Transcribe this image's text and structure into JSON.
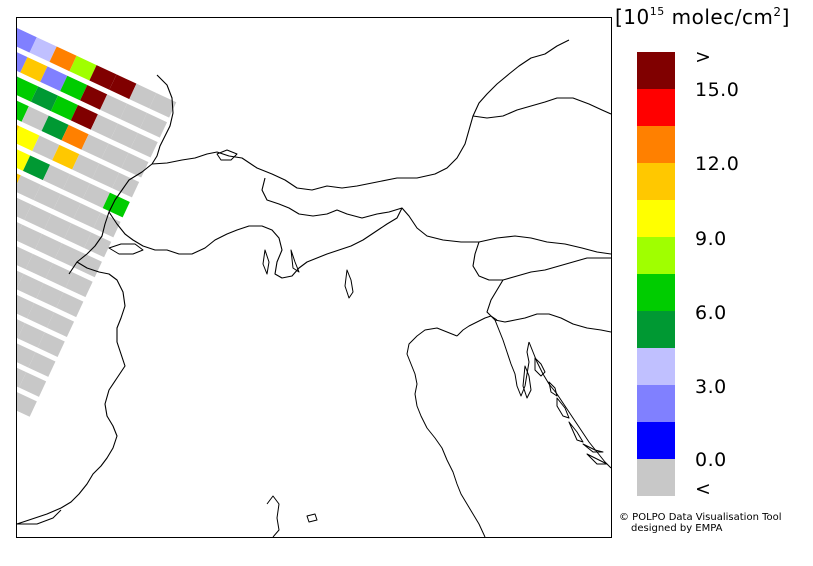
{
  "legend": {
    "title_prefix": "[10",
    "title_exp": "15",
    "title_unit": " molec/cm",
    "title_sq": "2",
    "title_suffix": "]",
    "labels": [
      ">",
      "15.0",
      "12.0",
      "9.0",
      "6.0",
      "3.0",
      "0.0",
      "<"
    ],
    "colors": [
      "#800000",
      "#ff0000",
      "#ff8000",
      "#ffc800",
      "#ffff00",
      "#a0ff00",
      "#00cc00",
      "#009933",
      "#c0c0ff",
      "#8080ff",
      "#0000ff",
      "#c8c8c8"
    ]
  },
  "credit": {
    "line1": "© POLPO Data Visualisation Tool",
    "line2": "designed by EMPA"
  },
  "swath_rows": [
    [
      "#8080ff",
      "#c0c0ff",
      "#c0c0ff",
      "#8080ff",
      "#c0c0ff",
      "#ff8000",
      "#a0ff00",
      "#800000",
      "#800000",
      "#c8c8c8",
      "#c8c8c8"
    ],
    [
      "#8080ff",
      "#8080ff",
      "#0000ff",
      "#8080ff",
      "#ffc800",
      "#8080ff",
      "#00cc00",
      "#800000",
      "#c8c8c8",
      "#c8c8c8",
      "#c8c8c8"
    ],
    [
      "#0000ff",
      "#0000ff",
      "#0000ff",
      "#009933",
      "#00cc00",
      "#009933",
      "#00cc00",
      "#800000",
      "#c8c8c8",
      "#c8c8c8",
      "#c8c8c8"
    ],
    [
      "#0000ff",
      "#8080ff",
      "#0000ff",
      "#0000ff",
      "#00cc00",
      "#c8c8c8",
      "#009933",
      "#ff8000",
      "#c8c8c8",
      "#c8c8c8",
      "#c8c8c8"
    ],
    [
      "#c8c8c8",
      "#0000ff",
      "#8080ff",
      "#a0ff00",
      "#ffc800",
      "#ffff00",
      "#c8c8c8",
      "#ffc800",
      "#c8c8c8",
      "#c8c8c8",
      "#c8c8c8"
    ],
    [
      "#8080ff",
      "#8080ff",
      "#00cc00",
      "#ffc800",
      "#a0ff00",
      "#ffff00",
      "#009933",
      "#c8c8c8",
      "#c8c8c8",
      "#c8c8c8",
      "#00cc00"
    ],
    [
      "#c0c0ff",
      "#8080ff",
      "#a0ff00",
      "#800000",
      "#ffc800",
      "#ffc800",
      "#c8c8c8",
      "#c8c8c8",
      "#c8c8c8",
      "#c8c8c8",
      "#c8c8c8"
    ],
    [
      "#c8c8c8",
      "#c8c8c8",
      "#ffc800",
      "#ff8000",
      "#a0ff00",
      "#ffc800",
      "#c8c8c8",
      "#c8c8c8",
      "#c8c8c8",
      "#c8c8c8",
      "#c8c8c8"
    ],
    [
      "#00cc00",
      "#ffc800",
      "#800000",
      "#00cc00",
      "#ff8000",
      "#00cc00",
      "#c8c8c8",
      "#c8c8c8",
      "#c8c8c8",
      "#c8c8c8",
      "#c8c8c8"
    ],
    [
      "#a0ff00",
      "#ffff00",
      "#009933",
      "#ff0000",
      "#c0c0ff",
      "#ffc800",
      "#009933",
      "#c8c8c8",
      "#c8c8c8",
      "#c8c8c8",
      "#c8c8c8"
    ],
    [
      "#ffff00",
      "#00cc00",
      "#009933",
      "#ffc800",
      "#c8c8c8",
      "#c8c8c8",
      "#c8c8c8",
      "#c8c8c8",
      "#c8c8c8",
      "#c8c8c8",
      "#c8c8c8"
    ],
    [
      "#00cc00",
      "#ffc800",
      "#009933",
      "#c8c8c8",
      "#c8c8c8",
      "#c8c8c8",
      "#c8c8c8",
      "#c8c8c8",
      "#c8c8c8",
      "#c8c8c8",
      "#c8c8c8"
    ],
    [
      "#a0ff00",
      "#00cc00",
      "#8080ff",
      "#c8c8c8",
      "#c8c8c8",
      "#c8c8c8",
      "#c8c8c8",
      "#c8c8c8",
      "#c8c8c8",
      "#c8c8c8",
      "#c8c8c8"
    ],
    [
      "#ffff00",
      "#00cc00",
      "#0000ff",
      "#c8c8c8",
      "#c8c8c8",
      "#c8c8c8",
      "#c8c8c8",
      "#c8c8c8",
      "#c8c8c8",
      "#c8c8c8",
      "#c8c8c8"
    ],
    [
      "#00cc00",
      "#a0ff00",
      "#c8c8c8",
      "#c8c8c8",
      "#c8c8c8",
      "#c8c8c8",
      "#c8c8c8",
      "#c8c8c8",
      "#c8c8c8",
      "#c8c8c8",
      "#c8c8c8"
    ],
    [
      "#c8c8c8",
      "#c8c8c8",
      "#c8c8c8",
      "#c8c8c8",
      "#c8c8c8",
      "#c8c8c8",
      "#c8c8c8",
      "#c8c8c8",
      "#c8c8c8",
      "#c8c8c8",
      "#c8c8c8"
    ]
  ]
}
